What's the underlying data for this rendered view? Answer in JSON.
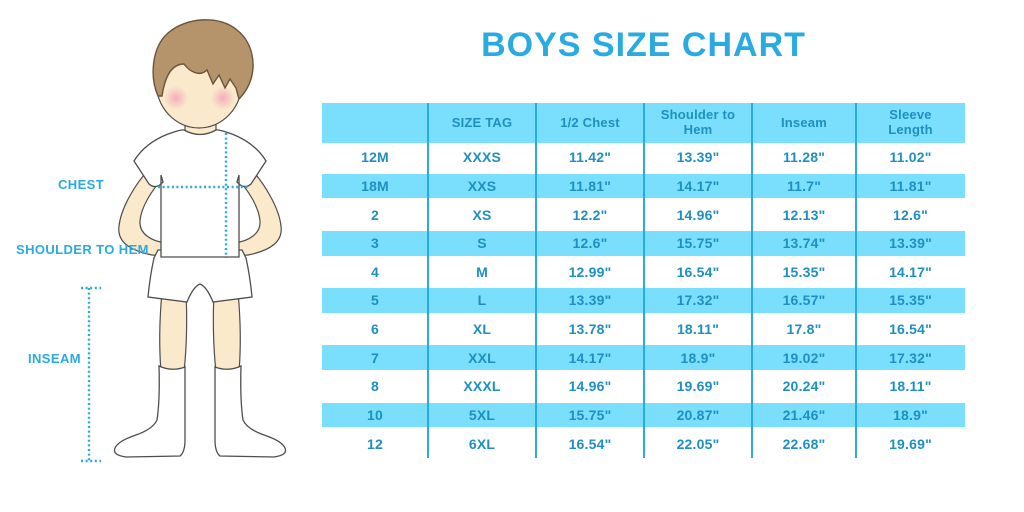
{
  "title": "BOYS SIZE CHART",
  "diagram": {
    "chest_label": "CHEST",
    "shoulder_to_hem_label": "SHOULDER TO HEM",
    "inseam_label": "INSEAM"
  },
  "colors": {
    "accent": "#29ABE2",
    "row_fill": "#79DFFC",
    "table_text": "#1F8FC2",
    "divider": "#2BAAE0",
    "skin": "#FBE9CB",
    "hair_fill": "#B5946C",
    "hair_outline": "#6A543A",
    "outline": "#4D4D4D"
  },
  "chart_data": {
    "type": "table",
    "title": "BOYS SIZE CHART",
    "columns": [
      "",
      "SIZE TAG",
      "1/2 Chest",
      "Shoulder to Hem",
      "Inseam",
      "Sleeve Length"
    ],
    "rows": [
      [
        "12M",
        "XXXS",
        "11.42\"",
        "13.39\"",
        "11.28\"",
        "11.02\""
      ],
      [
        "18M",
        "XXS",
        "11.81\"",
        "14.17\"",
        "11.7\"",
        "11.81\""
      ],
      [
        "2",
        "XS",
        "12.2\"",
        "14.96\"",
        "12.13\"",
        "12.6\""
      ],
      [
        "3",
        "S",
        "12.6\"",
        "15.75\"",
        "13.74\"",
        "13.39\""
      ],
      [
        "4",
        "M",
        "12.99\"",
        "16.54\"",
        "15.35\"",
        "14.17\""
      ],
      [
        "5",
        "L",
        "13.39\"",
        "17.32\"",
        "16.57\"",
        "15.35\""
      ],
      [
        "6",
        "XL",
        "13.78\"",
        "18.11\"",
        "17.8\"",
        "16.54\""
      ],
      [
        "7",
        "XXL",
        "14.17\"",
        "18.9\"",
        "19.02\"",
        "17.32\""
      ],
      [
        "8",
        "XXXL",
        "14.96\"",
        "19.69\"",
        "20.24\"",
        "18.11\""
      ],
      [
        "10",
        "5XL",
        "15.75\"",
        "20.87\"",
        "21.46\"",
        "18.9\""
      ],
      [
        "12",
        "6XL",
        "16.54\"",
        "22.05\"",
        "22.68\"",
        "19.69\""
      ]
    ]
  }
}
